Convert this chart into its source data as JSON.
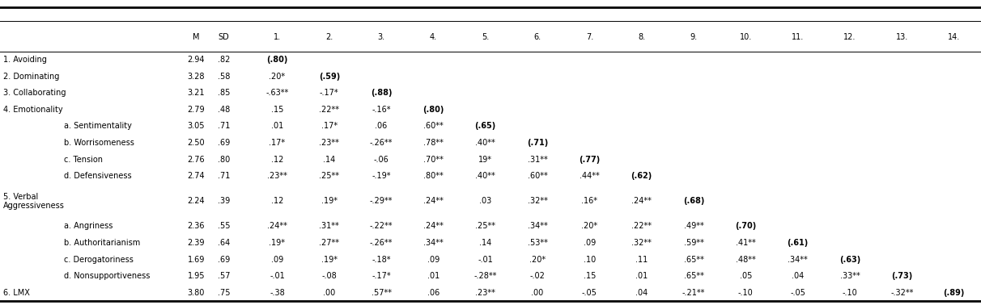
{
  "rows": [
    {
      "label": "1. Avoiding",
      "indent": 0,
      "M": "2.94",
      "SD": ".82",
      "vals": [
        "(.80)",
        "",
        "",
        "",
        "",
        "",
        "",
        "",
        "",
        "",
        "",
        "",
        "",
        ""
      ]
    },
    {
      "label": "2. Dominating",
      "indent": 0,
      "M": "3.28",
      "SD": ".58",
      "vals": [
        ".20*",
        "(.59)",
        "",
        "",
        "",
        "",
        "",
        "",
        "",
        "",
        "",
        "",
        "",
        ""
      ]
    },
    {
      "label": "3. Collaborating",
      "indent": 0,
      "M": "3.21",
      "SD": ".85",
      "vals": [
        "-.63**",
        "-.17*",
        "(.88)",
        "",
        "",
        "",
        "",
        "",
        "",
        "",
        "",
        "",
        "",
        ""
      ]
    },
    {
      "label": "4. Emotionality",
      "indent": 0,
      "M": "2.79",
      "SD": ".48",
      "vals": [
        ".15",
        ".22**",
        "-.16*",
        "(.80)",
        "",
        "",
        "",
        "",
        "",
        "",
        "",
        "",
        "",
        ""
      ]
    },
    {
      "label": "a. Sentimentality",
      "indent": 1,
      "M": "3.05",
      "SD": ".71",
      "vals": [
        ".01",
        ".17*",
        ".06",
        ".60**",
        "(.65)",
        "",
        "",
        "",
        "",
        "",
        "",
        "",
        "",
        ""
      ]
    },
    {
      "label": "b. Worrisomeness",
      "indent": 1,
      "M": "2.50",
      "SD": ".69",
      "vals": [
        ".17*",
        ".23**",
        "-.26**",
        ".78**",
        ".40**",
        "(.71)",
        "",
        "",
        "",
        "",
        "",
        "",
        "",
        ""
      ]
    },
    {
      "label": "c. Tension",
      "indent": 1,
      "M": "2.76",
      "SD": ".80",
      "vals": [
        ".12",
        ".14",
        "-.06",
        ".70**",
        "19*",
        ".31**",
        "(.77)",
        "",
        "",
        "",
        "",
        "",
        "",
        ""
      ]
    },
    {
      "label": "d. Defensiveness",
      "indent": 1,
      "M": "2.74",
      "SD": ".71",
      "vals": [
        ".23**",
        ".25**",
        "-.19*",
        ".80**",
        ".40**",
        ".60**",
        ".44**",
        "(.62)",
        "",
        "",
        "",
        "",
        "",
        ""
      ]
    },
    {
      "label": "5. Verbal\nAggressiveness",
      "indent": 0,
      "M": "2.24",
      "SD": ".39",
      "vals": [
        ".12",
        ".19*",
        "-.29**",
        ".24**",
        ".03",
        ".32**",
        ".16*",
        ".24**",
        "(.68)",
        "",
        "",
        "",
        "",
        ""
      ]
    },
    {
      "label": "a. Angriness",
      "indent": 1,
      "M": "2.36",
      "SD": ".55",
      "vals": [
        ".24**",
        ".31**",
        "-.22**",
        ".24**",
        ".25**",
        ".34**",
        ".20*",
        ".22**",
        ".49**",
        "(.70)",
        "",
        "",
        "",
        ""
      ]
    },
    {
      "label": "b. Authoritarianism",
      "indent": 1,
      "M": "2.39",
      "SD": ".64",
      "vals": [
        ".19*",
        ".27**",
        "-.26**",
        ".34**",
        ".14",
        ".53**",
        ".09",
        ".32**",
        ".59**",
        ".41**",
        "(.61)",
        "",
        "",
        ""
      ]
    },
    {
      "label": "c. Derogatoriness",
      "indent": 1,
      "M": "1.69",
      "SD": ".69",
      "vals": [
        ".09",
        ".19*",
        "-.18*",
        ".09",
        "-.01",
        ".20*",
        ".10",
        ".11",
        ".65**",
        ".48**",
        ".34**",
        "(.63)",
        "",
        ""
      ]
    },
    {
      "label": "d. Nonsupportiveness",
      "indent": 1,
      "M": "1.95",
      "SD": ".57",
      "vals": [
        "-.01",
        "-.08",
        "-.17*",
        ".01",
        "-.28**",
        "-.02",
        ".15",
        ".01",
        ".65**",
        ".05",
        ".04",
        ".33**",
        "(.73)",
        ""
      ]
    },
    {
      "label": "6. LMX",
      "indent": 0,
      "M": "3.80",
      "SD": ".75",
      "vals": [
        "-.38",
        ".00",
        ".57**",
        ".06",
        ".23**",
        ".00",
        "-.05",
        ".04",
        "-.21**",
        "-.10",
        "-.05",
        "-.10",
        "-.32**",
        "(.89)"
      ]
    }
  ],
  "col_headers": [
    "M",
    "SD",
    "1.",
    "2.",
    "3.",
    "4.",
    "5.",
    "6.",
    "7.",
    "8.",
    "9.",
    "10.",
    "11.",
    "12.",
    "13.",
    "14."
  ],
  "background_color": "#ffffff",
  "text_color": "#000000",
  "fontsize": 7.0
}
